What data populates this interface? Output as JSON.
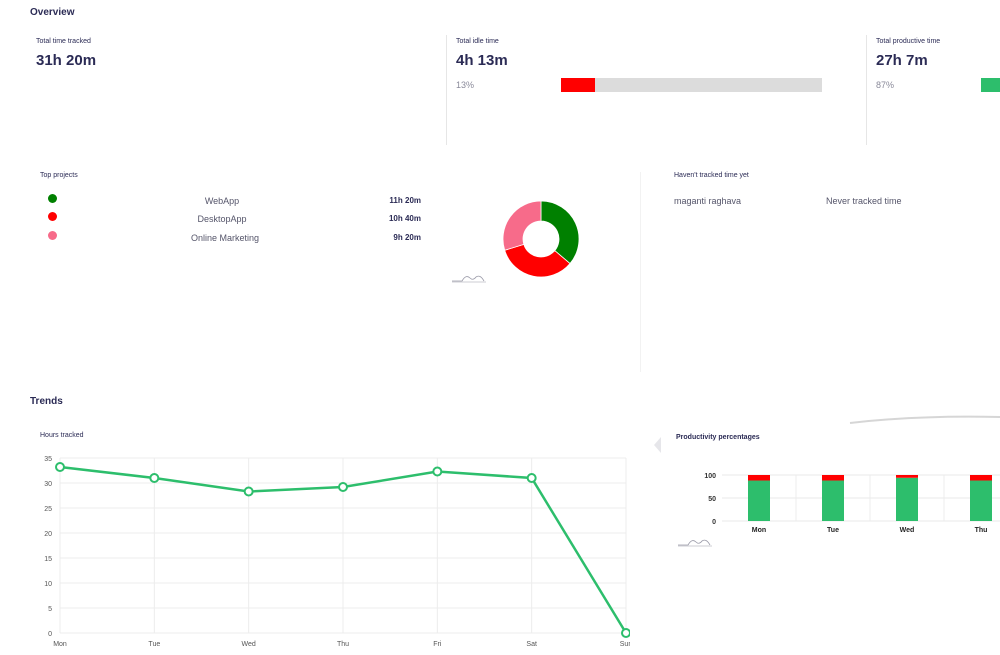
{
  "overview": {
    "title": "Overview",
    "total_tracked": {
      "label": "Total time tracked",
      "value": "31h 20m"
    },
    "idle": {
      "label": "Total idle time",
      "value": "4h 13m",
      "percent": "13%",
      "fraction": 0.13,
      "color": "#ff0000"
    },
    "productive": {
      "label": "Total productive time",
      "value": "27h 7m",
      "percent": "87%",
      "fraction": 0.87,
      "color": "#2dbe6c"
    }
  },
  "top_projects": {
    "title": "Top projects",
    "items": [
      {
        "name": "WebApp",
        "hours": "11h 20m",
        "color": "#008000",
        "share": 11.333
      },
      {
        "name": "DesktopApp",
        "hours": "10h 40m",
        "color": "#ff0000",
        "share": 10.667
      },
      {
        "name": "Online Marketing",
        "hours": "9h 20m",
        "color": "#f76b8a",
        "share": 9.333
      }
    ]
  },
  "not_tracked": {
    "title": "Haven't tracked time yet",
    "rows": [
      {
        "user": "maganti raghava",
        "status": "Never tracked time"
      }
    ]
  },
  "trends": {
    "title": "Trends",
    "hours_title": "Hours tracked",
    "productivity_title": "Productivity percentages"
  },
  "chart_data": [
    {
      "type": "line",
      "title": "Hours tracked",
      "categories": [
        "Mon",
        "Tue",
        "Wed",
        "Thu",
        "Fri",
        "Sat",
        "Sun"
      ],
      "values": [
        33.2,
        31.0,
        28.3,
        29.2,
        32.3,
        31.0,
        0
      ],
      "yticks": [
        0,
        5,
        10,
        15,
        20,
        25,
        30,
        35
      ],
      "ylim": [
        0,
        35
      ],
      "color": "#2dbe6c",
      "grid": true
    },
    {
      "type": "bar",
      "title": "Productivity percentages",
      "categories": [
        "Mon",
        "Tue",
        "Wed",
        "Thu"
      ],
      "series": [
        {
          "values": [
            88,
            88,
            94,
            88
          ],
          "color": "#2dbe6c"
        },
        {
          "values": [
            12,
            12,
            6,
            12
          ],
          "color": "#ff0000"
        }
      ],
      "yticks": [
        0,
        50,
        100
      ],
      "ylim": [
        0,
        100
      ],
      "stacked": true
    }
  ]
}
